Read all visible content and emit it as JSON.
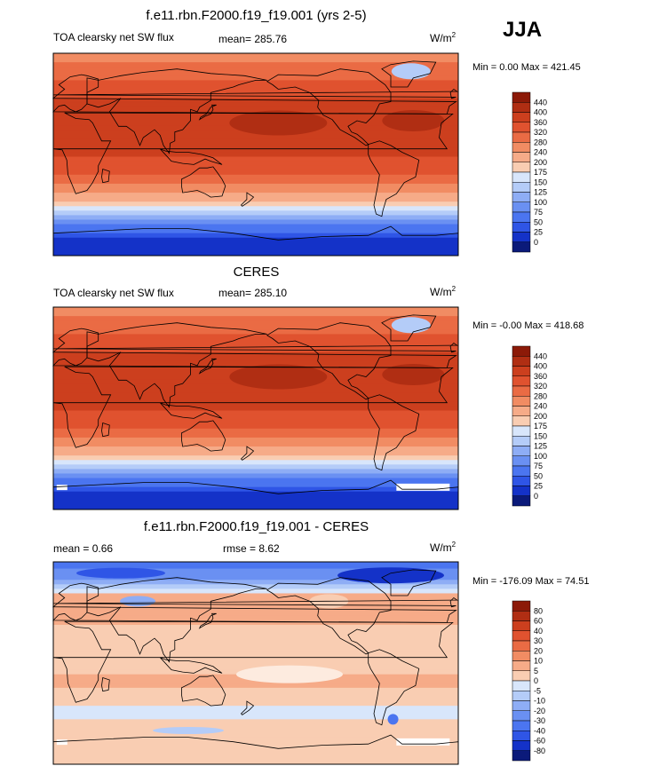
{
  "season": "JJA",
  "units_prefix": "W/m",
  "units_exp": "2",
  "panels": [
    {
      "id": "model",
      "title": "f.e11.rbn.F2000.f19_f19.001 (yrs 2-5)",
      "variable": "TOA clearsky net SW flux",
      "stat_text": "mean= 285.76",
      "minmax_text": "Min =   0.00 Max = 421.45"
    },
    {
      "id": "obs",
      "title": "CERES",
      "variable": "TOA clearsky net SW flux",
      "stat_text": "mean= 285.10",
      "minmax_text": "Min =  -0.00 Max = 418.68"
    },
    {
      "id": "diff",
      "title": "f.e11.rbn.F2000.f19_f19.001 - CERES",
      "mean_text": "mean =   0.66",
      "rmse_text": "rmse =   8.62",
      "minmax_text": "Min = -176.09 Max =  74.51"
    }
  ],
  "colors": {
    "abs_scale": [
      "#0b1a7a",
      "#1432c8",
      "#2f55e6",
      "#4b75f0",
      "#6a90f2",
      "#8eadf5",
      "#b4ccf8",
      "#d8e6fb",
      "#fdebdf",
      "#f9cdb2",
      "#f6ab88",
      "#f18c63",
      "#ea6b44",
      "#e0522f",
      "#cc3f1e",
      "#b02e13",
      "#8c1a08"
    ],
    "diff_scale": [
      "#0b1a7a",
      "#1432c8",
      "#2f55e6",
      "#4b75f0",
      "#6a90f2",
      "#8eadf5",
      "#b4ccf8",
      "#d8e6fb",
      "#fdebdf",
      "#f9cdb2",
      "#f6ab88",
      "#f18c63",
      "#ea6b44",
      "#e0522f",
      "#cc3f1e",
      "#b02e13",
      "#8c1a08"
    ],
    "land_outline": "#000000"
  },
  "chart_data": [
    {
      "type": "heatmap",
      "title": "f.e11.rbn.F2000.f19_f19.001 (yrs 2-5)",
      "subtitle": "TOA clearsky net SW flux",
      "units": "W/m2",
      "mean": 285.76,
      "min": 0.0,
      "max": 421.45,
      "colorbar_levels": [
        0,
        25,
        50,
        75,
        100,
        125,
        150,
        175,
        200,
        240,
        280,
        320,
        360,
        400,
        440
      ],
      "colorbar_labels": [
        "440",
        "400",
        "360",
        "320",
        "280",
        "240",
        "200",
        "175",
        "150",
        "125",
        "100",
        "75",
        "50",
        "25",
        "0"
      ],
      "x_range": [
        0,
        360
      ],
      "y_range": [
        -90,
        90
      ],
      "zonal_profile": {
        "lat": [
          90,
          75,
          60,
          45,
          30,
          15,
          0,
          -15,
          -30,
          -45,
          -60,
          -75,
          -90
        ],
        "value": [
          240,
          300,
          330,
          370,
          400,
          390,
          360,
          330,
          250,
          175,
          90,
          25,
          0
        ]
      }
    },
    {
      "type": "heatmap",
      "title": "CERES",
      "subtitle": "TOA clearsky net SW flux",
      "units": "W/m2",
      "mean": 285.1,
      "min": -0.0,
      "max": 418.68,
      "colorbar_levels": [
        0,
        25,
        50,
        75,
        100,
        125,
        150,
        175,
        200,
        240,
        280,
        320,
        360,
        400,
        440
      ],
      "colorbar_labels": [
        "440",
        "400",
        "360",
        "320",
        "280",
        "240",
        "200",
        "175",
        "150",
        "125",
        "100",
        "75",
        "50",
        "25",
        "0"
      ],
      "x_range": [
        0,
        360
      ],
      "y_range": [
        -90,
        90
      ],
      "zonal_profile": {
        "lat": [
          90,
          75,
          60,
          45,
          30,
          15,
          0,
          -15,
          -30,
          -45,
          -60,
          -75,
          -90
        ],
        "value": [
          240,
          300,
          330,
          370,
          400,
          390,
          360,
          330,
          250,
          175,
          90,
          25,
          0
        ]
      }
    },
    {
      "type": "heatmap",
      "title": "f.e11.rbn.F2000.f19_f19.001 - CERES",
      "units": "W/m2",
      "mean": 0.66,
      "rmse": 8.62,
      "min": -176.09,
      "max": 74.51,
      "colorbar_levels": [
        -80,
        -60,
        -40,
        -30,
        -20,
        -10,
        -5,
        0,
        5,
        10,
        20,
        30,
        40,
        60,
        80
      ],
      "colorbar_labels": [
        "80",
        "60",
        "40",
        "30",
        "20",
        "10",
        "5",
        "0",
        "-5",
        "-10",
        "-20",
        "-30",
        "-40",
        "-60",
        "-80"
      ],
      "x_range": [
        0,
        360
      ],
      "y_range": [
        -90,
        90
      ],
      "zonal_profile": {
        "lat": [
          90,
          75,
          60,
          45,
          30,
          15,
          0,
          -15,
          -30,
          -45,
          -60,
          -75,
          -90
        ],
        "value": [
          -40,
          -20,
          5,
          8,
          3,
          0,
          2,
          6,
          3,
          -3,
          4,
          0,
          0
        ]
      }
    }
  ]
}
